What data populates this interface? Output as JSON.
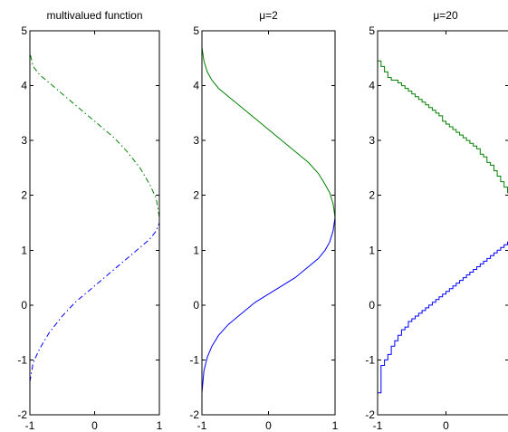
{
  "chart_data": [
    {
      "type": "line",
      "title": "multivalued function",
      "xlim": [
        -1,
        1
      ],
      "ylim": [
        -2,
        5
      ],
      "xticks": [
        -1,
        0,
        1
      ],
      "yticks": [
        -2,
        -1,
        0,
        1,
        2,
        3,
        4,
        5
      ],
      "grid": false,
      "series": [
        {
          "line_style": "dash-dot",
          "color": "#0000ff",
          "x": [
            -1.0,
            -0.95,
            -0.85,
            -0.7,
            -0.5,
            -0.3,
            -0.1,
            0.1,
            0.3,
            0.5,
            0.7,
            0.85,
            0.95,
            1.0
          ],
          "y": [
            -1.4,
            -1.05,
            -0.8,
            -0.5,
            -0.2,
            0.05,
            0.25,
            0.45,
            0.65,
            0.85,
            1.05,
            1.2,
            1.35,
            1.5
          ]
        },
        {
          "line_style": "dash-dot",
          "color": "#008000",
          "x": [
            1.0,
            0.95,
            0.85,
            0.7,
            0.5,
            0.3,
            0.1,
            -0.1,
            -0.3,
            -0.5,
            -0.7,
            -0.85,
            -0.95,
            -1.0
          ],
          "y": [
            1.6,
            1.95,
            2.2,
            2.5,
            2.8,
            3.05,
            3.25,
            3.45,
            3.65,
            3.85,
            4.05,
            4.2,
            4.35,
            4.6
          ]
        }
      ]
    },
    {
      "type": "line",
      "title": "μ=2",
      "xlim": [
        -1,
        1
      ],
      "ylim": [
        -2,
        5
      ],
      "xticks": [
        -1,
        0,
        1
      ],
      "yticks": [
        -2,
        -1,
        0,
        1,
        2,
        3,
        4,
        5
      ],
      "grid": false,
      "series": [
        {
          "line_style": "solid",
          "color": "#0000ff",
          "x": [
            -1.0,
            -0.97,
            -0.92,
            -0.85,
            -0.75,
            -0.6,
            -0.4,
            -0.2,
            0.0,
            0.2,
            0.4,
            0.6,
            0.75,
            0.85,
            0.92,
            0.97,
            1.0
          ],
          "y": [
            -1.6,
            -1.2,
            -0.95,
            -0.75,
            -0.55,
            -0.35,
            -0.15,
            0.05,
            0.2,
            0.35,
            0.5,
            0.7,
            0.85,
            1.0,
            1.15,
            1.35,
            1.6
          ]
        },
        {
          "line_style": "solid",
          "color": "#008000",
          "x": [
            1.0,
            0.97,
            0.92,
            0.85,
            0.75,
            0.6,
            0.4,
            0.2,
            0.0,
            -0.2,
            -0.4,
            -0.6,
            -0.75,
            -0.85,
            -0.92,
            -0.97,
            -1.0
          ],
          "y": [
            1.6,
            1.85,
            2.05,
            2.2,
            2.4,
            2.6,
            2.8,
            3.0,
            3.2,
            3.4,
            3.6,
            3.8,
            3.95,
            4.1,
            4.25,
            4.45,
            4.7
          ]
        }
      ]
    },
    {
      "type": "line",
      "title": "μ=20",
      "xlim": [
        -1,
        1
      ],
      "ylim": [
        -2,
        5
      ],
      "xticks": [
        -1,
        0
      ],
      "yticks": [
        -2,
        -1,
        0,
        1,
        2,
        3,
        4,
        5
      ],
      "grid": false,
      "series": [
        {
          "line_style": "steps",
          "color": "#0000ff",
          "x": [
            -1.0,
            -0.95,
            -0.9,
            -0.85,
            -0.8,
            -0.75,
            -0.7,
            -0.65,
            -0.6,
            -0.55,
            -0.5,
            -0.45,
            -0.4,
            -0.35,
            -0.3,
            -0.25,
            -0.2,
            -0.15,
            -0.1,
            -0.05,
            0.0,
            0.05,
            0.1,
            0.15,
            0.2,
            0.25,
            0.3,
            0.35,
            0.4,
            0.45,
            0.5,
            0.55,
            0.6,
            0.65,
            0.7,
            0.75,
            0.8,
            0.85,
            0.9,
            0.95,
            1.0
          ],
          "y": [
            -1.6,
            -1.1,
            -1.0,
            -0.9,
            -0.75,
            -0.65,
            -0.55,
            -0.45,
            -0.4,
            -0.3,
            -0.25,
            -0.2,
            -0.15,
            -0.1,
            -0.05,
            0.0,
            0.05,
            0.1,
            0.15,
            0.2,
            0.25,
            0.3,
            0.35,
            0.4,
            0.45,
            0.5,
            0.55,
            0.6,
            0.65,
            0.7,
            0.75,
            0.8,
            0.85,
            0.9,
            0.95,
            1.0,
            1.05,
            1.1,
            1.15,
            1.2,
            1.25
          ]
        },
        {
          "line_style": "steps",
          "color": "#008000",
          "x": [
            1.0,
            0.95,
            0.9,
            0.85,
            0.8,
            0.75,
            0.7,
            0.65,
            0.6,
            0.55,
            0.5,
            0.45,
            0.4,
            0.35,
            0.3,
            0.25,
            0.2,
            0.15,
            0.1,
            0.05,
            0.0,
            -0.05,
            -0.1,
            -0.15,
            -0.2,
            -0.25,
            -0.3,
            -0.35,
            -0.4,
            -0.45,
            -0.5,
            -0.55,
            -0.6,
            -0.65,
            -0.7,
            -0.75,
            -0.8,
            -0.85,
            -0.9,
            -0.95,
            -1.0
          ],
          "y": [
            1.95,
            2.05,
            2.15,
            2.25,
            2.35,
            2.45,
            2.55,
            2.6,
            2.7,
            2.75,
            2.85,
            2.9,
            2.95,
            3.0,
            3.05,
            3.1,
            3.15,
            3.2,
            3.25,
            3.3,
            3.35,
            3.45,
            3.5,
            3.55,
            3.6,
            3.65,
            3.7,
            3.75,
            3.8,
            3.85,
            3.9,
            3.95,
            4.0,
            4.05,
            4.1,
            4.1,
            4.15,
            4.25,
            4.35,
            4.45,
            4.75
          ]
        }
      ]
    }
  ]
}
